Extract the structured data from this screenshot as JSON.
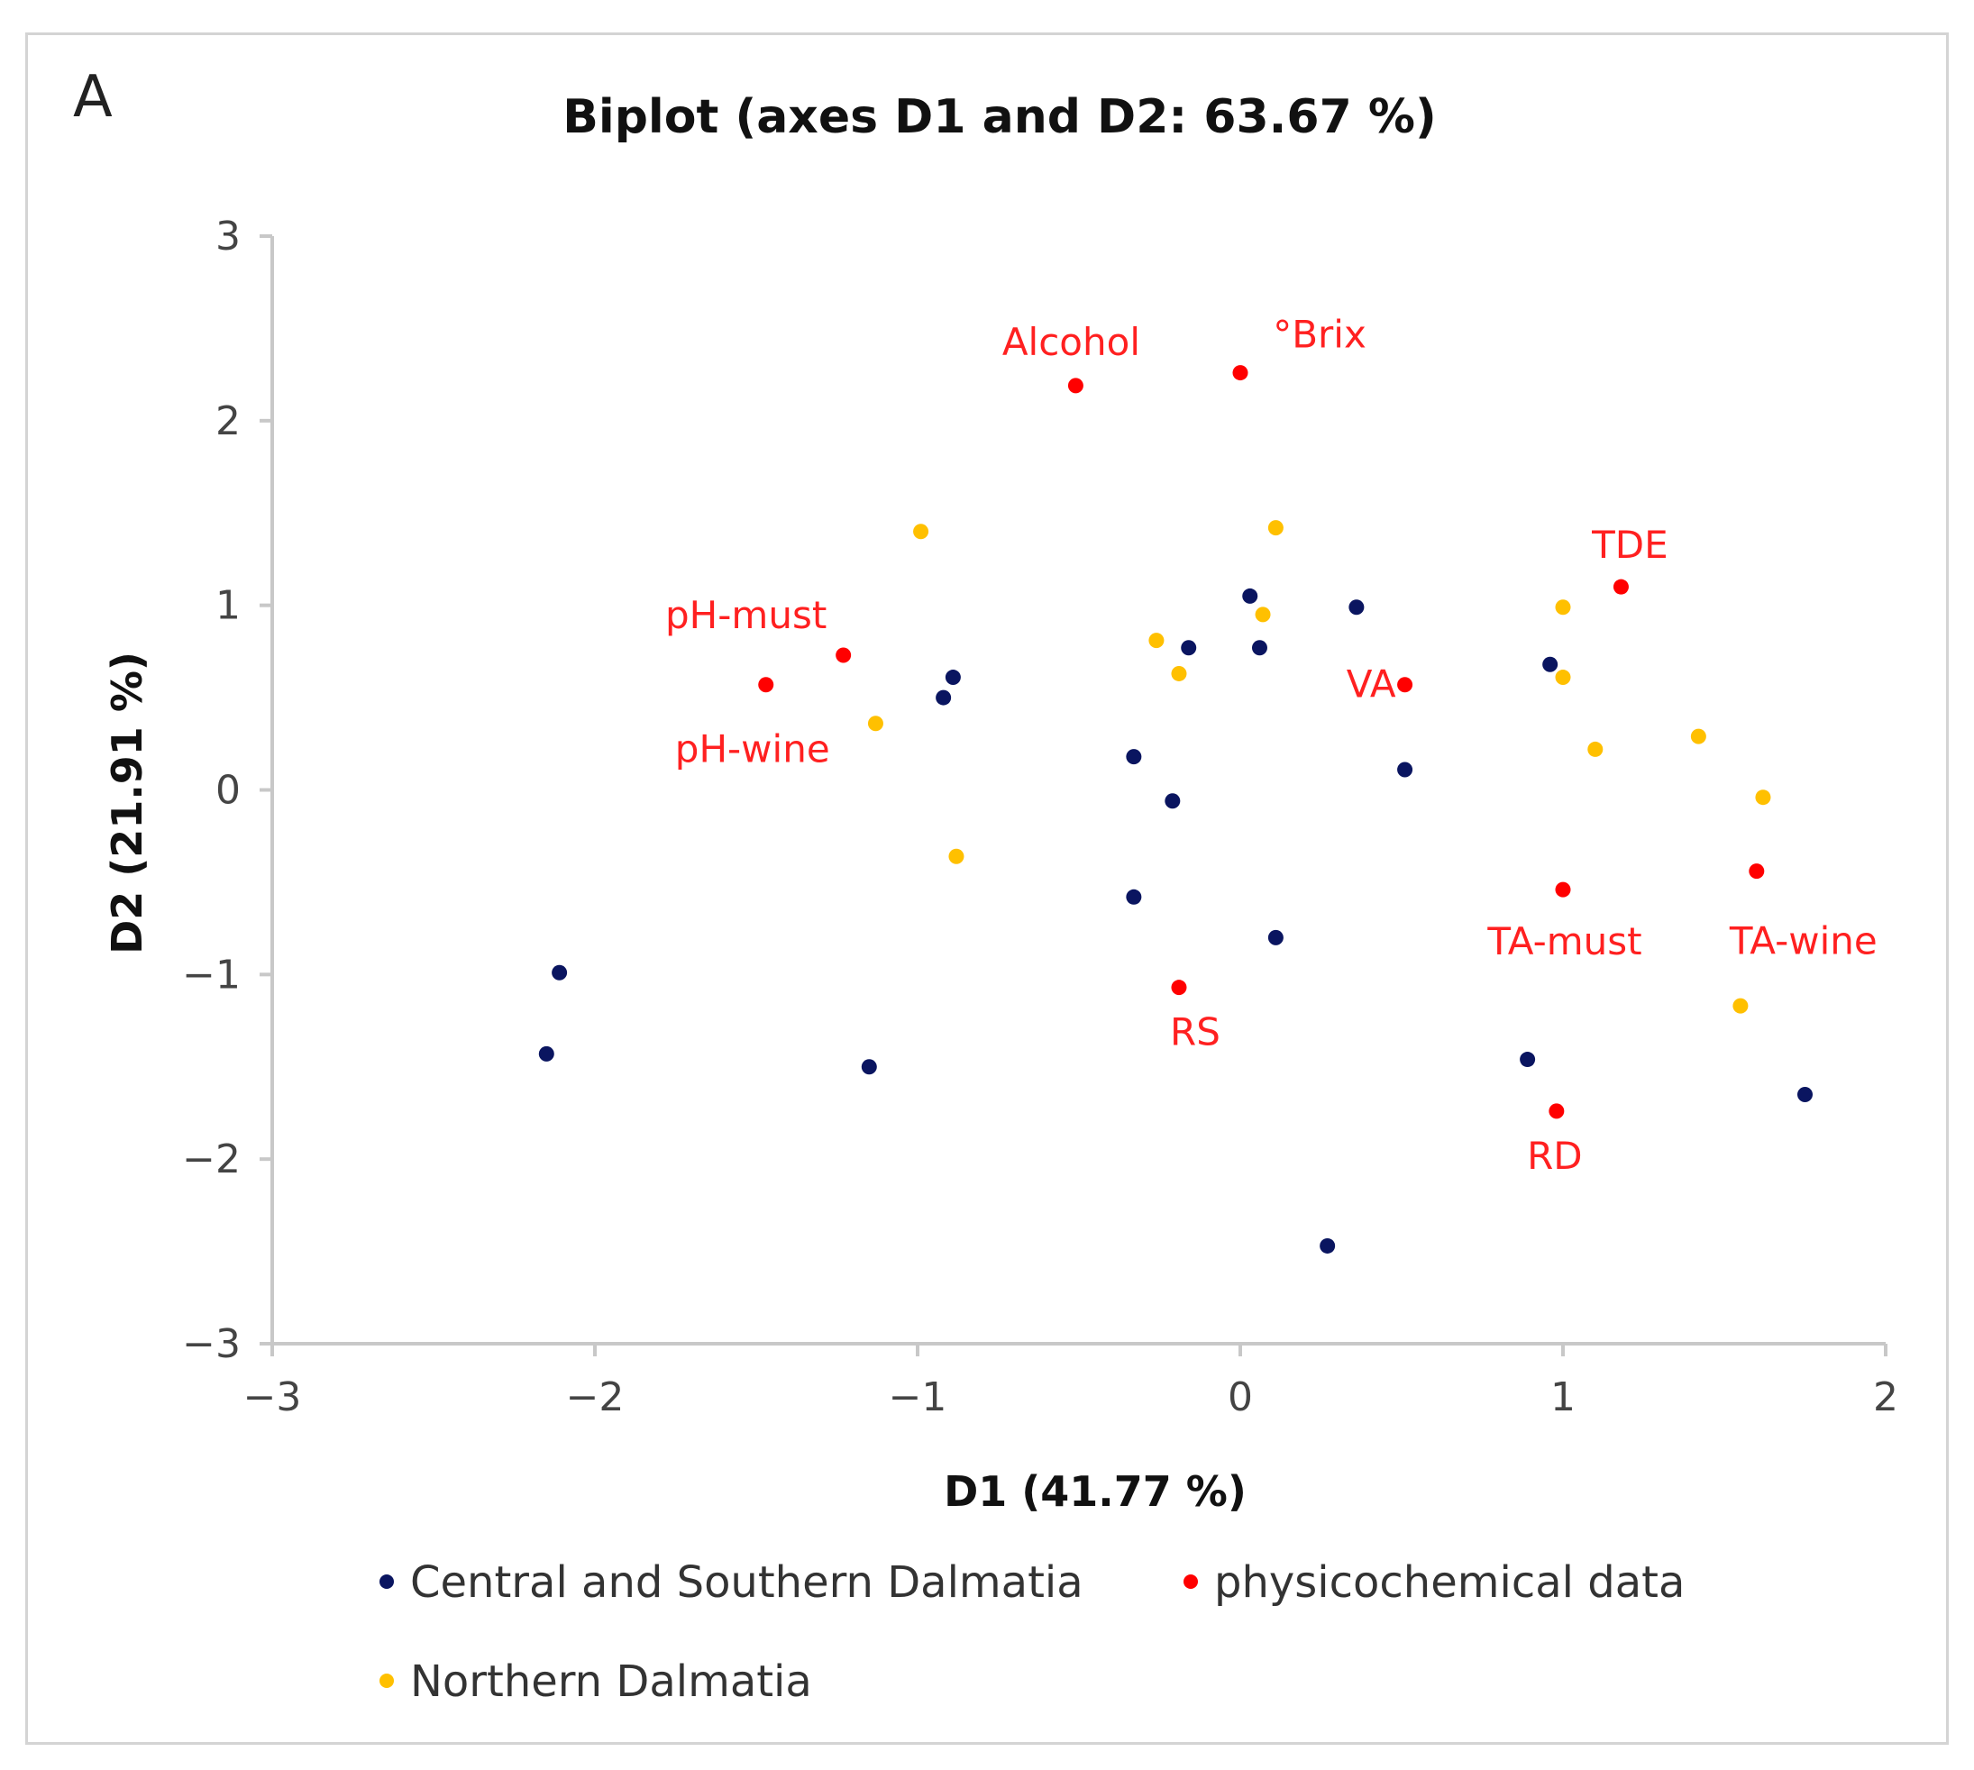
{
  "panel_letter": "A",
  "chart_data": {
    "type": "scatter",
    "title": "Biplot (axes D1 and D2: 63.67 %)",
    "xlabel": "D1 (41.77 %)",
    "ylabel": "D2 (21.91 %)",
    "xlim": [
      -3,
      2
    ],
    "ylim": [
      -3,
      3
    ],
    "xticks": [
      -3,
      -2,
      -1,
      0,
      1,
      2
    ],
    "yticks": [
      -3,
      -2,
      -1,
      0,
      1,
      2,
      3
    ],
    "xtick_labels": [
      "−3",
      "−2",
      "−1",
      "0",
      "1",
      "2"
    ],
    "ytick_labels": [
      "−3",
      "−2",
      "−1",
      "0",
      "1",
      "2",
      "3"
    ],
    "grid": false,
    "legend_position": "bottom",
    "series": [
      {
        "name": "Central and Southern Dalmatia",
        "color": "#0a1560",
        "points": [
          {
            "x": -2.15,
            "y": -1.43
          },
          {
            "x": -2.11,
            "y": -0.99
          },
          {
            "x": -1.15,
            "y": -1.5
          },
          {
            "x": -0.92,
            "y": 0.5
          },
          {
            "x": -0.89,
            "y": 0.61
          },
          {
            "x": -0.33,
            "y": 0.18
          },
          {
            "x": -0.33,
            "y": -0.58
          },
          {
            "x": -0.21,
            "y": -0.06
          },
          {
            "x": -0.16,
            "y": 0.77
          },
          {
            "x": 0.03,
            "y": 1.05
          },
          {
            "x": 0.06,
            "y": 0.77
          },
          {
            "x": 0.11,
            "y": -0.8
          },
          {
            "x": 0.27,
            "y": -2.47
          },
          {
            "x": 0.36,
            "y": 0.99
          },
          {
            "x": 0.51,
            "y": 0.11
          },
          {
            "x": 0.89,
            "y": -1.46
          },
          {
            "x": 0.96,
            "y": 0.68
          },
          {
            "x": 1.75,
            "y": -1.65
          }
        ]
      },
      {
        "name": "physicochemical data",
        "color": "#ff0000",
        "points": [
          {
            "x": -0.51,
            "y": 2.19,
            "label": "Alcohol"
          },
          {
            "x": 0.0,
            "y": 2.26,
            "label": "°Brix"
          },
          {
            "x": -1.23,
            "y": 0.73,
            "label": "pH-must"
          },
          {
            "x": -1.47,
            "y": 0.57,
            "label": "pH-wine"
          },
          {
            "x": 1.18,
            "y": 1.1,
            "label": "TDE"
          },
          {
            "x": 0.51,
            "y": 0.57,
            "label": "VA"
          },
          {
            "x": 1.0,
            "y": -0.54,
            "label": "TA-must"
          },
          {
            "x": 1.6,
            "y": -0.44,
            "label": "TA-wine"
          },
          {
            "x": -0.19,
            "y": -1.07,
            "label": "RS"
          },
          {
            "x": 0.98,
            "y": -1.74,
            "label": "RD"
          }
        ]
      },
      {
        "name": "Northern Dalmatia",
        "color": "#ffc000",
        "points": [
          {
            "x": -0.99,
            "y": 1.4
          },
          {
            "x": -1.13,
            "y": 0.36
          },
          {
            "x": -0.88,
            "y": -0.36
          },
          {
            "x": -0.26,
            "y": 0.81
          },
          {
            "x": -0.19,
            "y": 0.63
          },
          {
            "x": 0.07,
            "y": 0.95
          },
          {
            "x": 0.11,
            "y": 1.42
          },
          {
            "x": 1.0,
            "y": 0.99
          },
          {
            "x": 1.0,
            "y": 0.61
          },
          {
            "x": 1.1,
            "y": 0.22
          },
          {
            "x": 1.42,
            "y": 0.29
          },
          {
            "x": 1.62,
            "y": -0.04
          },
          {
            "x": 1.55,
            "y": -1.17
          }
        ]
      }
    ]
  }
}
